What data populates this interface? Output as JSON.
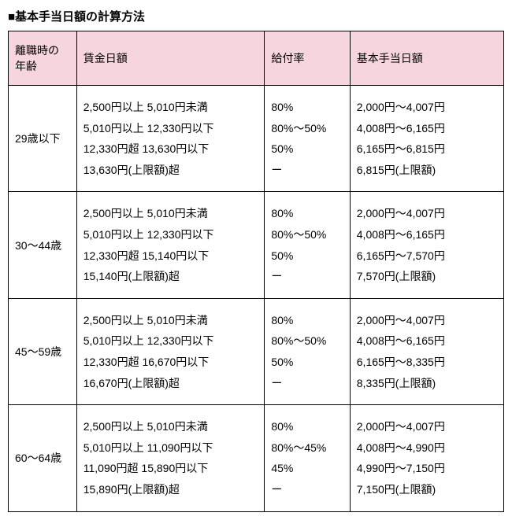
{
  "title": "■基本手当日額の計算方法",
  "headers": {
    "age": "離職時の\n年齢",
    "wage": "賃金日額",
    "rate": "給付率",
    "amount": "基本手当日額"
  },
  "rows": [
    {
      "age": "29歳以下",
      "wage": [
        "2,500円以上 5,010円未満",
        "5,010円以上 12,330円以下",
        "12,330円超 13,630円以下",
        "13,630円(上限額)超"
      ],
      "rate": [
        "80%",
        "80%～50%",
        "50%",
        "ー"
      ],
      "amount": [
        "2,000円～4,007円",
        "4,008円～6,165円",
        "6,165円～6,815円",
        "6,815円(上限額)"
      ]
    },
    {
      "age": "30～44歳",
      "wage": [
        "2,500円以上 5,010円未満",
        "5,010円以上 12,330円以下",
        "12,330円超 15,140円以下",
        "15,140円(上限額)超"
      ],
      "rate": [
        "80%",
        "80%～50%",
        "50%",
        "ー"
      ],
      "amount": [
        "2,000円～4,007円",
        "4,008円～6,165円",
        "6,165円～7,570円",
        "7,570円(上限額)"
      ]
    },
    {
      "age": "45～59歳",
      "wage": [
        "2,500円以上 5,010円未満",
        "5,010円以上 12,330円以下",
        "12,330円超 16,670円以下",
        "16,670円(上限額)超"
      ],
      "rate": [
        "80%",
        "80%～50%",
        "50%",
        "ー"
      ],
      "amount": [
        "2,000円～4,007円",
        "4,008円～6,165円",
        "6,165円～8,335円",
        "8,335円(上限額)"
      ]
    },
    {
      "age": "60～64歳",
      "wage": [
        "2,500円以上 5,010円未満",
        "5,010円以上 11,090円以下",
        "11,090円超 15,890円以下",
        "15,890円(上限額)超"
      ],
      "rate": [
        "80%",
        "80%～45%",
        "45%",
        "ー"
      ],
      "amount": [
        "2,000円～4,007円",
        "4,008円～4,990円",
        "4,990円～7,150円",
        "7,150円(上限額)"
      ]
    }
  ]
}
